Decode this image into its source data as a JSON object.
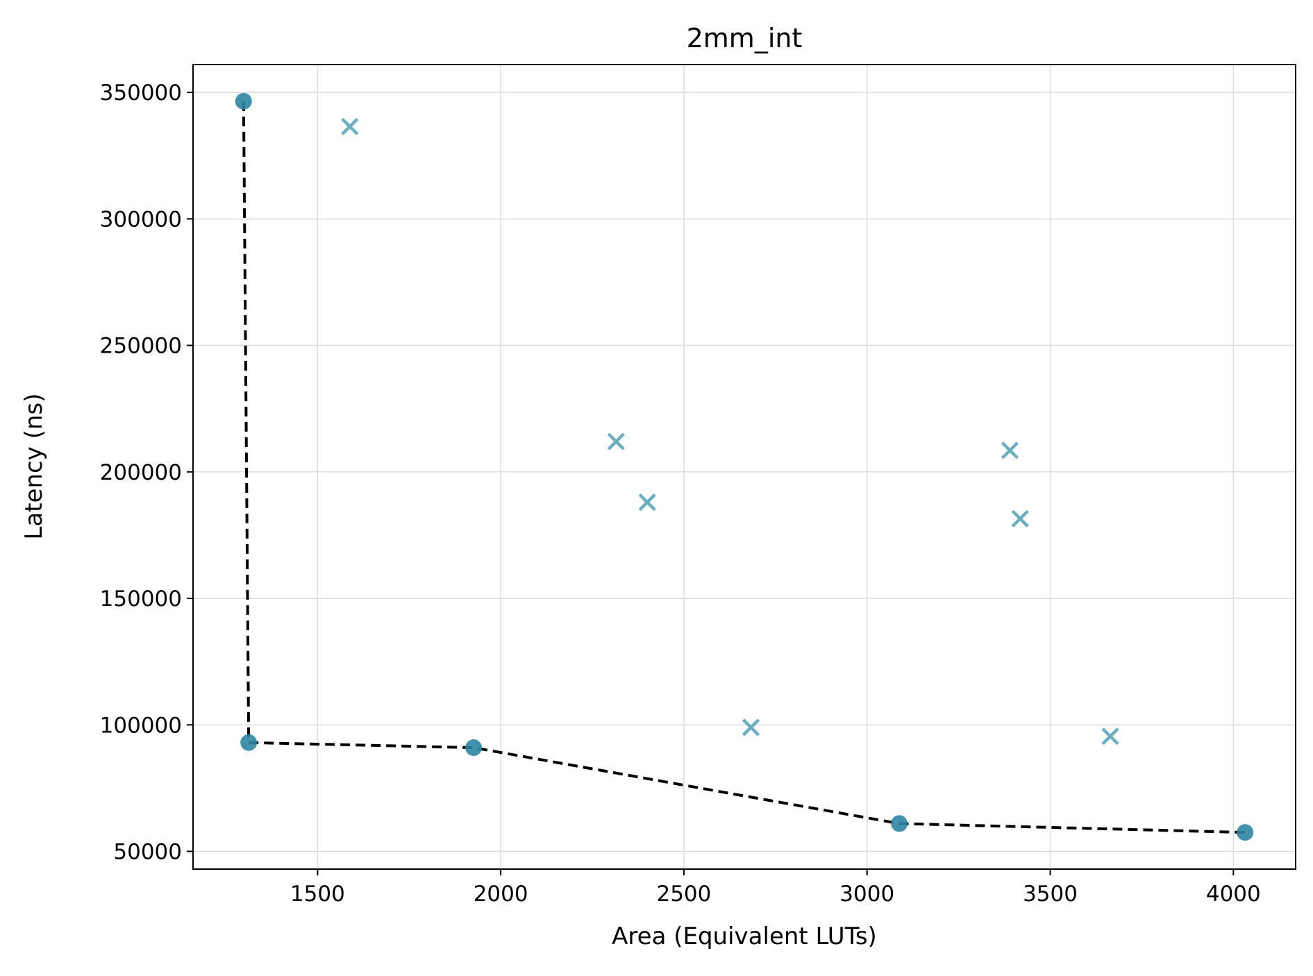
{
  "chart_data": {
    "type": "scatter",
    "title": "2mm_int",
    "xlabel": "Area (Equivalent LUTs)",
    "ylabel": "Latency (ns)",
    "xlim": [
      1160,
      4170
    ],
    "ylim": [
      43000,
      361000
    ],
    "xticks": [
      1500,
      2000,
      2500,
      3000,
      3500,
      4000
    ],
    "yticks": [
      50000,
      100000,
      150000,
      200000,
      250000,
      300000,
      350000
    ],
    "grid": true,
    "pareto_points": [
      {
        "x": 1298,
        "y": 346500
      },
      {
        "x": 1312,
        "y": 93000
      },
      {
        "x": 1926,
        "y": 91000
      },
      {
        "x": 3088,
        "y": 61000
      },
      {
        "x": 4032,
        "y": 57500
      }
    ],
    "other_points": [
      {
        "x": 1588,
        "y": 336500
      },
      {
        "x": 2315,
        "y": 212000
      },
      {
        "x": 2400,
        "y": 188000
      },
      {
        "x": 2683,
        "y": 99000
      },
      {
        "x": 3390,
        "y": 208500
      },
      {
        "x": 3418,
        "y": 181500
      },
      {
        "x": 3664,
        "y": 95500
      }
    ],
    "colors": {
      "pareto_marker": "#2e86a5",
      "other_marker": "#6aaec0",
      "pareto_line": "#000000"
    }
  }
}
